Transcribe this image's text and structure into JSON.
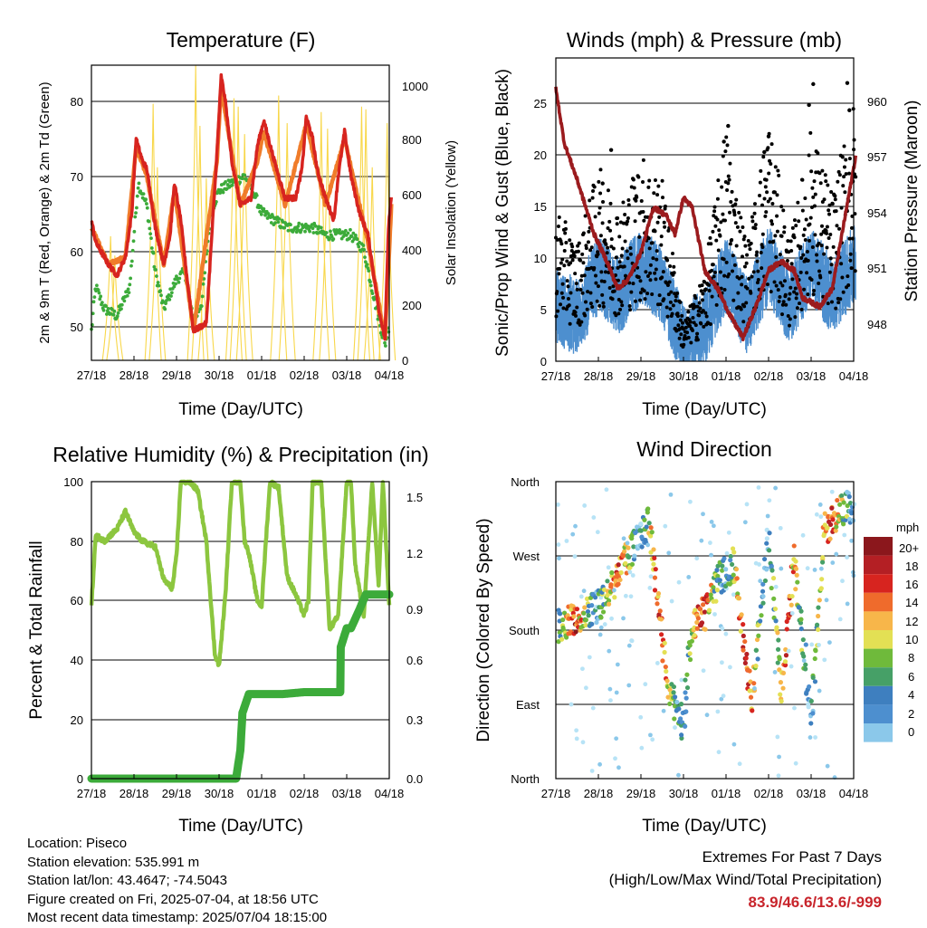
{
  "days": [
    "27/18",
    "28/18",
    "29/18",
    "30/18",
    "01/18",
    "02/18",
    "03/18",
    "04/18"
  ],
  "xlabel": "Time (Day/UTC)",
  "panels": {
    "temperature": {
      "title": "Temperature (F)",
      "ylabel_left": "2m & 9m T (Red, Orange) & 2m Td (Green)",
      "ylabel_right": "Solar Insolation (Yellow)",
      "left_ticks": [
        "50",
        "60",
        "70",
        "80"
      ],
      "right_ticks": [
        "0",
        "200",
        "400",
        "600",
        "800",
        "1000"
      ]
    },
    "winds": {
      "title": "Winds (mph) & Pressure (mb)",
      "ylabel_left": "Sonic/Prop Wind & Gust (Blue, Black)",
      "ylabel_right": "Station Pressure (Maroon)",
      "left_ticks": [
        "0",
        "5",
        "10",
        "15",
        "20",
        "25"
      ],
      "right_ticks": [
        "948",
        "951",
        "954",
        "957",
        "960"
      ]
    },
    "humidity": {
      "title": "Relative Humidity (%) & Precipitation (in)",
      "ylabel_left": "Percent & Total Rainfall",
      "left_ticks": [
        "0",
        "20",
        "40",
        "60",
        "80",
        "100"
      ],
      "right_ticks": [
        "0.0",
        "0.3",
        "0.6",
        "0.9",
        "1.2",
        "1.5"
      ]
    },
    "direction": {
      "title": "Wind Direction",
      "ylabel_left": "Direction (Colored By Speed)",
      "left_ticks": [
        "North",
        "East",
        "South",
        "West",
        "North"
      ],
      "legend_title": "mph",
      "legend_labels": [
        "20+",
        "18",
        "16",
        "14",
        "12",
        "10",
        "8",
        "6",
        "4",
        "2",
        "0"
      ]
    }
  },
  "footer": {
    "location": "Location: Piseco",
    "elevation": "Station elevation: 535.991 m",
    "latlon": "Station lat/lon: 43.4647; -74.5043",
    "created": "Figure created on Fri, 2025-07-04, at 18:56 UTC",
    "recent": "Most recent data timestamp: 2025/07/04 18:15:00"
  },
  "extremes": {
    "title": "Extremes For Past 7 Days",
    "subtitle": "(High/Low/Max Wind/Total Precipitation)",
    "values": "83.9/46.6/13.6/-999"
  },
  "colors": {
    "temp2m": "#d7241f",
    "temp9m": "#f07c2a",
    "dewpoint": "#3cab3a",
    "solar": "#f8d74a",
    "wind": "#4d8fcf",
    "gust": "#000000",
    "pressure": "#9b1b1e",
    "rh": "#8cc63f",
    "precip": "#3cab3a",
    "speed_scale": [
      "#b7e3f6",
      "#8bc8ea",
      "#4d8fcf",
      "#3e7fbf",
      "#46a067",
      "#6fba3b",
      "#e3e054",
      "#f7b64a",
      "#ef6b2c",
      "#d7241f",
      "#b41f24",
      "#8b171c"
    ]
  },
  "chart_data": [
    {
      "type": "line",
      "title": "Temperature (F)",
      "xlabel": "Time (Day/UTC)",
      "ylabel": "2m & 9m T (Red, Orange) & 2m Td (Green)",
      "ylabel_right": "Solar Insolation (Yellow)",
      "x": [
        "27/18",
        "28/18",
        "29/18",
        "30/18",
        "01/18",
        "02/18",
        "03/18",
        "04/18"
      ],
      "ylim": [
        45,
        85
      ],
      "ylim_right": [
        0,
        1070
      ],
      "series": [
        {
          "name": "2m T",
          "x": [
            0,
            0.1,
            0.4,
            0.6,
            0.8,
            0.95,
            1.05,
            1.2,
            1.3,
            1.5,
            1.7,
            1.85,
            1.95,
            2.1,
            2.25,
            2.4,
            2.7,
            2.95,
            3.05,
            3.15,
            3.3,
            3.5,
            3.75,
            3.9,
            4.05,
            4.3,
            4.55,
            4.8,
            4.95,
            5.05,
            5.2,
            5.3,
            5.5,
            5.7,
            5.8,
            5.95,
            6.1,
            6.3,
            6.5,
            6.75,
            6.9,
            6.98,
            7.05
          ],
          "values": [
            64,
            61,
            58,
            56.5,
            59,
            65,
            75,
            72,
            71,
            63,
            58,
            62,
            69,
            64,
            56,
            49,
            50,
            73,
            83.5,
            80,
            72,
            66,
            67,
            74,
            77.5,
            72,
            67,
            67,
            71,
            78,
            75,
            71,
            67,
            64,
            70,
            76,
            70,
            65,
            62,
            52,
            48,
            63,
            67
          ]
        },
        {
          "name": "9m T",
          "x": [
            0,
            0.4,
            0.8,
            1.05,
            1.3,
            1.7,
            1.95,
            2.4,
            2.95,
            3.05,
            3.5,
            3.9,
            4.05,
            4.55,
            5.05,
            5.5,
            5.95,
            6.5,
            6.9,
            7.05
          ],
          "values": [
            63,
            58,
            59,
            74,
            70,
            58,
            68,
            49,
            72,
            82,
            66,
            72,
            76,
            66,
            77,
            66,
            75,
            61,
            48,
            66
          ]
        },
        {
          "name": "2m Td",
          "x": [
            0,
            0.1,
            0.3,
            0.6,
            0.9,
            1.1,
            1.3,
            1.5,
            1.7,
            2.0,
            2.2,
            2.4,
            2.6,
            2.8,
            3.0,
            3.3,
            3.6,
            3.8,
            4.0,
            4.3,
            4.6,
            4.9,
            5.2,
            5.5,
            5.8,
            6.1,
            6.4,
            6.7,
            6.9,
            7.0
          ],
          "values": [
            49,
            55,
            52,
            51,
            55,
            69,
            66,
            57,
            52,
            56,
            57,
            50,
            53,
            65,
            68,
            69,
            70,
            68,
            65,
            64,
            63,
            63,
            63,
            62,
            62,
            62,
            60,
            52,
            47,
            50
          ]
        },
        {
          "name": "Solar Insolation",
          "axis": "right",
          "peaks_x": [
            0.45,
            0.55,
            1.45,
            1.55,
            2.45,
            2.55,
            2.7,
            3.35,
            3.45,
            3.6,
            4.4,
            4.6,
            5.4,
            5.55,
            6.35,
            6.45,
            6.6,
            6.95
          ],
          "peaks": [
            450,
            380,
            930,
            700,
            1070,
            850,
            660,
            950,
            920,
            820,
            960,
            860,
            900,
            840,
            920,
            910,
            700,
            860
          ]
        }
      ]
    },
    {
      "type": "line",
      "title": "Winds (mph) & Pressure (mb)",
      "xlabel": "Time (Day/UTC)",
      "ylabel": "Sonic/Prop Wind & Gust (Blue, Black)",
      "ylabel_right": "Station Pressure (Maroon)",
      "x": [
        "27/18",
        "28/18",
        "29/18",
        "30/18",
        "01/18",
        "02/18",
        "03/18",
        "04/18"
      ],
      "ylim": [
        0,
        29
      ],
      "ylim_right": [
        946,
        962.7
      ],
      "series": [
        {
          "name": "Wind",
          "x": [
            0,
            0.5,
            1.0,
            1.5,
            2.0,
            2.5,
            3.0,
            3.5,
            4.0,
            4.5,
            5.0,
            5.5,
            6.0,
            6.5,
            7.0
          ],
          "values": [
            5,
            4,
            8,
            6,
            9,
            7,
            1.5,
            3,
            8,
            4,
            9,
            5,
            9,
            6,
            9
          ]
        },
        {
          "name": "Gust",
          "x": [
            0,
            0.5,
            1.0,
            1.5,
            2.0,
            2.5,
            3.0,
            3.5,
            4.0,
            4.5,
            5.0,
            5.5,
            6.0,
            6.5,
            7.0
          ],
          "values": [
            12,
            9,
            15,
            12,
            16,
            14,
            3,
            7,
            18,
            9,
            19,
            9,
            18,
            13,
            20
          ]
        },
        {
          "name": "Station Pressure",
          "axis": "right",
          "x": [
            0,
            0.2,
            0.5,
            0.9,
            1.2,
            1.45,
            1.7,
            2.0,
            2.3,
            2.6,
            2.8,
            3.0,
            3.2,
            3.5,
            3.8,
            4.1,
            4.4,
            4.7,
            5.0,
            5.3,
            5.6,
            5.8,
            6.2,
            6.5,
            6.8,
            7.05
          ],
          "values": [
            961,
            958,
            956,
            953,
            951.5,
            950,
            950.5,
            952,
            954.5,
            954,
            953,
            955,
            954.5,
            951,
            950,
            948.5,
            947.3,
            949,
            951,
            951.5,
            951,
            949.5,
            949,
            950,
            954,
            957.3
          ]
        }
      ]
    },
    {
      "type": "line",
      "title": "Relative Humidity (%) & Precipitation (in)",
      "xlabel": "Time (Day/UTC)",
      "ylabel": "Percent & Total Rainfall",
      "x": [
        "27/18",
        "28/18",
        "29/18",
        "30/18",
        "01/18",
        "02/18",
        "03/18",
        "04/18"
      ],
      "ylim": [
        0,
        100
      ],
      "ylim_right": [
        0,
        1.58
      ],
      "series": [
        {
          "name": "Relative Humidity",
          "x": [
            0,
            0.1,
            0.3,
            0.6,
            0.8,
            1.0,
            1.2,
            1.5,
            1.7,
            1.9,
            2.0,
            2.1,
            2.3,
            2.5,
            2.7,
            2.9,
            3.0,
            3.15,
            3.3,
            3.5,
            3.6,
            3.7,
            3.9,
            4.0,
            4.1,
            4.2,
            4.4,
            4.6,
            4.8,
            5.0,
            5.1,
            5.2,
            5.4,
            5.6,
            5.8,
            6.0,
            6.1,
            6.2,
            6.4,
            6.6,
            6.75,
            6.85,
            7.0
          ],
          "values": [
            58,
            82,
            80,
            84,
            90,
            83,
            80,
            78,
            67,
            64,
            75,
            100,
            100,
            97,
            80,
            42,
            38,
            62,
            100,
            100,
            80,
            76,
            60,
            58,
            80,
            100,
            98,
            68,
            62,
            55,
            60,
            100,
            100,
            50,
            55,
            100,
            100,
            72,
            55,
            100,
            65,
            100,
            58
          ]
        },
        {
          "name": "Total Rainfall",
          "axis": "right",
          "x": [
            0,
            1.0,
            2.0,
            2.8,
            3.2,
            3.4,
            3.5,
            3.55,
            3.7,
            4.0,
            4.5,
            5.0,
            5.5,
            5.85,
            5.86,
            6.0,
            6.1,
            6.3,
            6.45,
            7.0
          ],
          "values": [
            0,
            0,
            0,
            0,
            0,
            0,
            0.15,
            0.35,
            0.45,
            0.45,
            0.45,
            0.46,
            0.46,
            0.46,
            0.7,
            0.8,
            0.8,
            0.9,
            0.98,
            0.98
          ]
        }
      ]
    },
    {
      "type": "scatter",
      "title": "Wind Direction",
      "xlabel": "Time (Day/UTC)",
      "ylabel": "Direction (Colored By Speed)",
      "x": [
        "27/18",
        "28/18",
        "29/18",
        "30/18",
        "01/18",
        "02/18",
        "03/18",
        "04/18"
      ],
      "y_categories": [
        "North",
        "East",
        "South",
        "West",
        "North"
      ],
      "ylim": [
        0,
        360
      ],
      "color_scale": {
        "title": "mph",
        "labels": [
          "0",
          "2",
          "4",
          "6",
          "8",
          "10",
          "12",
          "14",
          "16",
          "18",
          "20+"
        ]
      },
      "series": [
        {
          "name": "Wind Direction",
          "x": [
            0.2,
            0.6,
            1.0,
            1.4,
            1.8,
            2.2,
            2.6,
            3.0,
            3.2,
            3.5,
            3.8,
            4.2,
            4.6,
            5.0,
            5.3,
            5.6,
            6.0,
            6.3,
            6.6,
            6.9
          ],
          "values": [
            185,
            200,
            210,
            240,
            280,
            310,
            120,
            60,
            190,
            200,
            240,
            260,
            90,
            300,
            100,
            275,
            70,
            300,
            320,
            330
          ]
        }
      ]
    }
  ]
}
